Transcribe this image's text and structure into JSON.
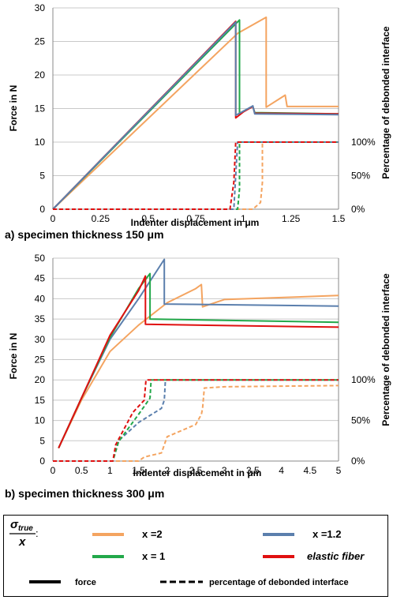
{
  "captions": {
    "a": "a) specimen thickness 150 μm",
    "b": "b) specimen thickness 300 μm"
  },
  "legend": {
    "sigma": "σ",
    "sigma_sub": "true",
    "denominator": "x",
    "colon": ":",
    "items": [
      {
        "label": "x =2",
        "color": "#f4a460",
        "style": "solid"
      },
      {
        "label": "x =1.2",
        "color": "#5b7fad",
        "style": "solid"
      },
      {
        "label": "x = 1",
        "color": "#22a84a",
        "style": "solid"
      },
      {
        "label": "elastic fiber",
        "color": "#e01010",
        "style": "solid"
      },
      {
        "label": "force",
        "color": "#000000",
        "style": "solid"
      },
      {
        "label": "percentage of debonded interface",
        "color": "#000000",
        "style": "dashed"
      }
    ]
  },
  "chart_data": [
    {
      "type": "line",
      "xlabel": "Indenter displacement in μm",
      "ylabel": "Force in N",
      "y2label": "Percentage of debonded interface",
      "xlim": [
        0,
        1.5
      ],
      "ylim": [
        0,
        30
      ],
      "xticks": [
        "0",
        "0.25",
        "0.5",
        "0.75",
        "1",
        "1.25",
        "1.5"
      ],
      "xtick_values": [
        0,
        0.25,
        0.5,
        0.75,
        1,
        1.25,
        1.5
      ],
      "yticks": [
        "0",
        "5",
        "10",
        "15",
        "20",
        "25",
        "30"
      ],
      "ytick_values": [
        0,
        5,
        10,
        15,
        20,
        25,
        30
      ],
      "y2ticks": [
        "0%",
        "50%",
        "100%"
      ],
      "y2tick_values": [
        0,
        5,
        10
      ],
      "grid": "horizontal",
      "series": [
        {
          "color": "#f4a460",
          "style": "solid",
          "points": [
            [
              0,
              0
            ],
            [
              0.97,
              26.2
            ],
            [
              1.12,
              28.6
            ],
            [
              1.12,
              15.2
            ],
            [
              1.22,
              17.0
            ],
            [
              1.23,
              15.3
            ],
            [
              1.5,
              15.3
            ]
          ]
        },
        {
          "color": "#22a84a",
          "style": "solid",
          "points": [
            [
              0,
              0
            ],
            [
              0.98,
              28.2
            ],
            [
              0.98,
              14.2
            ],
            [
              1.0,
              14.6
            ],
            [
              1.05,
              15.3
            ],
            [
              1.06,
              14.4
            ],
            [
              1.5,
              14.2
            ]
          ]
        },
        {
          "color": "#e01010",
          "style": "solid",
          "points": [
            [
              0,
              0
            ],
            [
              0.96,
              28.0
            ],
            [
              0.96,
              13.6
            ],
            [
              1.0,
              14.5
            ],
            [
              1.05,
              15.3
            ],
            [
              1.06,
              14.3
            ],
            [
              1.5,
              14.2
            ]
          ]
        },
        {
          "color": "#5b7fad",
          "style": "solid",
          "points": [
            [
              0,
              0
            ],
            [
              0.96,
              27.9
            ],
            [
              0.96,
              14.0
            ],
            [
              1.0,
              14.6
            ],
            [
              1.05,
              15.4
            ],
            [
              1.06,
              14.2
            ],
            [
              1.5,
              14.1
            ]
          ]
        },
        {
          "color": "#f4a460",
          "style": "dashed",
          "points": [
            [
              0,
              0
            ],
            [
              1.05,
              0
            ],
            [
              1.09,
              1.0
            ],
            [
              1.1,
              4.0
            ],
            [
              1.1,
              10.0
            ],
            [
              1.5,
              10.0
            ]
          ]
        },
        {
          "color": "#22a84a",
          "style": "dashed",
          "points": [
            [
              0,
              0
            ],
            [
              0.97,
              0
            ],
            [
              0.98,
              3.0
            ],
            [
              0.98,
              10.0
            ],
            [
              1.5,
              10.0
            ]
          ]
        },
        {
          "color": "#5b7fad",
          "style": "dashed",
          "points": [
            [
              0,
              0
            ],
            [
              0.95,
              0
            ],
            [
              0.96,
              5.0
            ],
            [
              0.97,
              10.0
            ],
            [
              1.5,
              10.0
            ]
          ]
        },
        {
          "color": "#e01010",
          "style": "dashed",
          "points": [
            [
              0,
              0
            ],
            [
              0.93,
              0
            ],
            [
              0.95,
              4.0
            ],
            [
              0.96,
              10.0
            ],
            [
              1.5,
              10.0
            ]
          ]
        }
      ]
    },
    {
      "type": "line",
      "xlabel": "Indenter displacement in μm",
      "ylabel": "Force in N",
      "y2label": "Percentage of debonded interface",
      "xlim": [
        0,
        5
      ],
      "ylim": [
        0,
        50
      ],
      "xticks": [
        "0",
        "0.5",
        "1",
        "1.5",
        "2",
        "2.5",
        "3",
        "3.5",
        "4",
        "4.5",
        "5"
      ],
      "xtick_values": [
        0,
        0.5,
        1,
        1.5,
        2,
        2.5,
        3,
        3.5,
        4,
        4.5,
        5
      ],
      "yticks": [
        "0",
        "5",
        "10",
        "15",
        "20",
        "25",
        "30",
        "35",
        "40",
        "45",
        "50"
      ],
      "ytick_values": [
        0,
        5,
        10,
        15,
        20,
        25,
        30,
        35,
        40,
        45,
        50
      ],
      "y2ticks": [
        "0%",
        "50%",
        "100%"
      ],
      "y2tick_values": [
        0,
        10,
        20
      ],
      "grid": "horizontal",
      "series": [
        {
          "color": "#f4a460",
          "style": "solid",
          "points": [
            [
              0.1,
              3.2
            ],
            [
              0.5,
              15.0
            ],
            [
              1.0,
              27.0
            ],
            [
              1.5,
              33.5
            ],
            [
              2.0,
              39.0
            ],
            [
              2.5,
              42.5
            ],
            [
              2.6,
              43.5
            ],
            [
              2.62,
              38.0
            ],
            [
              3.0,
              39.8
            ],
            [
              4.0,
              40.3
            ],
            [
              5.0,
              40.8
            ]
          ]
        },
        {
          "color": "#5b7fad",
          "style": "solid",
          "points": [
            [
              0.1,
              3.2
            ],
            [
              0.5,
              15.5
            ],
            [
              1.0,
              30.0
            ],
            [
              1.5,
              40.0
            ],
            [
              1.95,
              49.7
            ],
            [
              1.95,
              38.7
            ],
            [
              5.0,
              38.2
            ]
          ]
        },
        {
          "color": "#22a84a",
          "style": "solid",
          "points": [
            [
              0.1,
              3.2
            ],
            [
              0.5,
              15.5
            ],
            [
              1.0,
              30.5
            ],
            [
              1.5,
              42.5
            ],
            [
              1.7,
              46.2
            ],
            [
              1.7,
              35.0
            ],
            [
              5.0,
              34.2
            ]
          ]
        },
        {
          "color": "#e01010",
          "style": "solid",
          "points": [
            [
              0.1,
              3.2
            ],
            [
              0.5,
              15.5
            ],
            [
              1.0,
              31.0
            ],
            [
              1.5,
              42.0
            ],
            [
              1.62,
              45.6
            ],
            [
              1.62,
              33.7
            ],
            [
              5.0,
              33.0
            ]
          ]
        },
        {
          "color": "#f4a460",
          "style": "dashed",
          "points": [
            [
              0,
              0
            ],
            [
              1.5,
              0
            ],
            [
              1.6,
              1.0
            ],
            [
              1.9,
              2.0
            ],
            [
              2.0,
              6.0
            ],
            [
              2.5,
              9.0
            ],
            [
              2.6,
              11.5
            ],
            [
              2.62,
              13.0
            ],
            [
              2.65,
              18.0
            ],
            [
              3.0,
              18.3
            ],
            [
              5.0,
              18.6
            ]
          ]
        },
        {
          "color": "#5b7fad",
          "style": "dashed",
          "points": [
            [
              0,
              0
            ],
            [
              1.05,
              0
            ],
            [
              1.15,
              5.0
            ],
            [
              1.5,
              9.5
            ],
            [
              1.9,
              13.0
            ],
            [
              1.95,
              15.0
            ],
            [
              1.97,
              20.0
            ],
            [
              5.0,
              20.0
            ]
          ]
        },
        {
          "color": "#22a84a",
          "style": "dashed",
          "points": [
            [
              0,
              0
            ],
            [
              1.05,
              0
            ],
            [
              1.15,
              4.8
            ],
            [
              1.5,
              11.5
            ],
            [
              1.7,
              15.5
            ],
            [
              1.72,
              20.0
            ],
            [
              5.0,
              20.0
            ]
          ]
        },
        {
          "color": "#e01010",
          "style": "dashed",
          "points": [
            [
              0,
              0
            ],
            [
              1.05,
              0
            ],
            [
              1.1,
              4.0
            ],
            [
              1.4,
              12.0
            ],
            [
              1.6,
              15.0
            ],
            [
              1.63,
              20.0
            ],
            [
              5.0,
              20.0
            ]
          ]
        }
      ]
    }
  ]
}
